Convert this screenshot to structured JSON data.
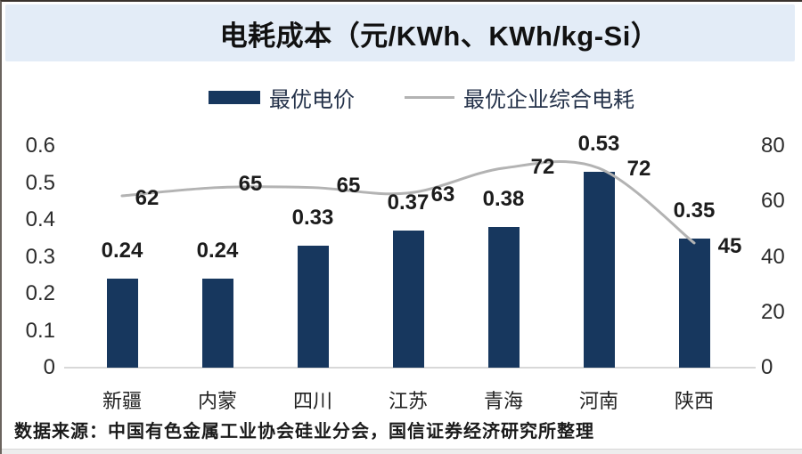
{
  "title": "电耗成本（元/KWh、KWh/kg-Si）",
  "legend": {
    "bar_label": "最优电价",
    "line_label": "最优企业综合电耗"
  },
  "footer": "数据来源：中国有色金属工业协会硅业分会，国信证券经济研究所整理",
  "colors": {
    "bar": "#17375e",
    "line": "#b3b3b3",
    "band": "#e3ecf7"
  },
  "chart_data": {
    "type": "bar+line",
    "title": "电耗成本（元/KWh、KWh/kg-Si）",
    "categories": [
      "新疆",
      "内蒙",
      "四川",
      "江苏",
      "青海",
      "河南",
      "陕西"
    ],
    "series": [
      {
        "name": "最优电价",
        "type": "bar",
        "axis": "left",
        "unit": "元/KWh",
        "values": [
          0.24,
          0.24,
          0.33,
          0.37,
          0.38,
          0.53,
          0.35
        ]
      },
      {
        "name": "最优企业综合电耗",
        "type": "line",
        "axis": "right",
        "unit": "KWh/kg-Si",
        "values": [
          62,
          65,
          65,
          63,
          72,
          72,
          45
        ]
      }
    ],
    "left_axis": {
      "min": 0,
      "max": 0.6,
      "tick_values": [
        0,
        0.1,
        0.2,
        0.3,
        0.4,
        0.5,
        0.6
      ],
      "tick_labels": [
        "0",
        "0.1",
        "0.2",
        "0.3",
        "0.4",
        "0.5",
        "0.6"
      ]
    },
    "right_axis": {
      "min": 0,
      "max": 80,
      "tick_values": [
        0,
        20,
        40,
        60,
        80
      ],
      "tick_labels": [
        "0",
        "20",
        "40",
        "60",
        "80"
      ]
    },
    "grid": false,
    "legend_position": "top"
  }
}
